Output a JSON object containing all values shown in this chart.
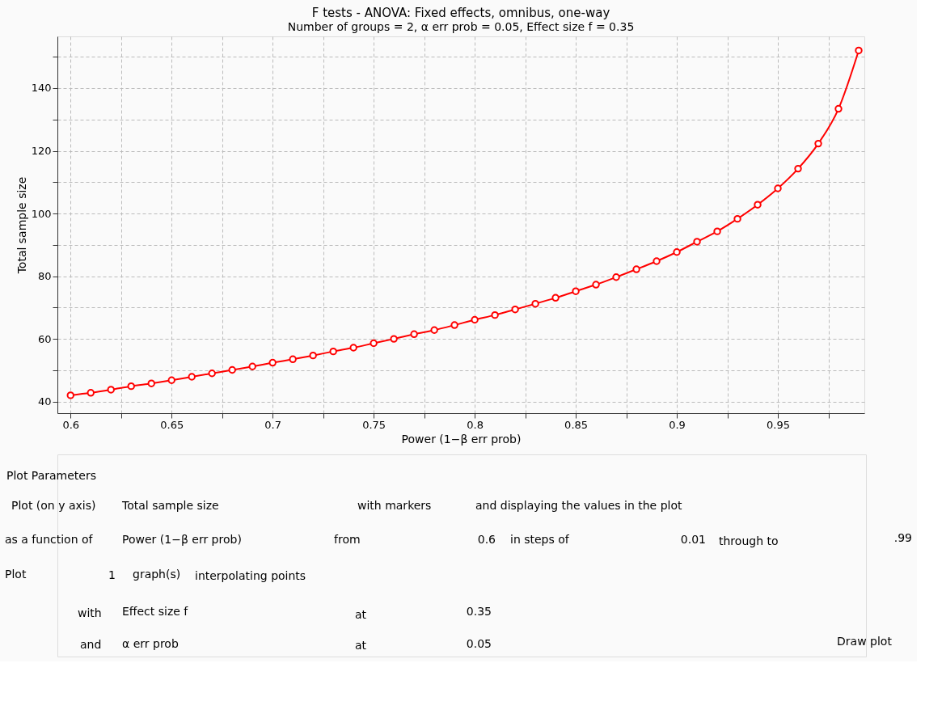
{
  "chart_data": {
    "type": "line",
    "title": "F tests - ANOVA: Fixed effects, omnibus, one-way",
    "subtitle": "Number of groups = 2, α err prob = 0.05, Effect size f = 0.35",
    "xlabel": "Power (1−β err prob)",
    "ylabel": "Total sample size",
    "x": [
      0.6,
      0.61,
      0.62,
      0.63,
      0.64,
      0.65,
      0.66,
      0.67,
      0.68,
      0.69,
      0.7,
      0.71,
      0.72,
      0.73,
      0.74,
      0.75,
      0.76,
      0.77,
      0.78,
      0.79,
      0.8,
      0.81,
      0.82,
      0.83,
      0.84,
      0.85,
      0.86,
      0.87,
      0.88,
      0.89,
      0.9,
      0.91,
      0.92,
      0.93,
      0.94,
      0.95,
      0.96,
      0.97,
      0.98,
      0.99
    ],
    "series": [
      {
        "color": "#ff0000",
        "values": [
          42,
          42.8,
          43.8,
          44.9,
          45.8,
          46.8,
          47.9,
          49,
          50.1,
          51.2,
          52.4,
          53.5,
          54.7,
          56,
          57.2,
          58.6,
          60,
          61.5,
          62.8,
          64.4,
          66.1,
          67.6,
          69.4,
          71.2,
          73.1,
          75.2,
          77.3,
          79.7,
          82.2,
          84.8,
          87.7,
          91,
          94.3,
          98.3,
          102.8,
          108,
          114.3,
          122.3,
          133.4,
          152
        ]
      }
    ],
    "xlim": [
      0.5935,
      0.9928
    ],
    "ylim": [
      36.3,
      156.5
    ],
    "xticks": [
      0.6,
      {
        "value": 0.625,
        "label": null
      },
      0.65,
      {
        "value": 0.675,
        "label": null
      },
      0.7,
      {
        "value": 0.725,
        "label": null
      },
      0.75,
      {
        "value": 0.775,
        "label": null
      },
      0.8,
      {
        "value": 0.825,
        "label": null
      },
      0.85,
      {
        "value": 0.875,
        "label": null
      },
      0.9,
      {
        "value": 0.925,
        "label": null
      },
      0.95,
      {
        "value": 0.975,
        "label": null
      }
    ],
    "yticks": [
      40,
      {
        "value": 50,
        "label": null
      },
      60,
      {
        "value": 70,
        "label": null
      },
      80,
      {
        "value": 90,
        "label": null
      },
      100,
      {
        "value": 110,
        "label": null
      },
      120,
      {
        "value": 130,
        "label": null
      },
      140,
      {
        "value": 150,
        "label": null
      }
    ],
    "grid": true,
    "marker": "circle",
    "line_style": "solid",
    "annotations": [
      "Plot Parameters",
      "Plot (on y axis)",
      "Total sample size",
      "with markers",
      "and displaying the values in the plot",
      "as a function of",
      "Power (1−β err prob)",
      "from",
      "0.6",
      "in steps of",
      "0.01",
      "through to",
      ".99",
      "Plot",
      "1",
      "graph(s)",
      "interpolating points",
      "with",
      "Effect size f",
      "at",
      "0.35",
      "and",
      "α err prob",
      "at",
      "0.05",
      "Draw plot"
    ]
  }
}
